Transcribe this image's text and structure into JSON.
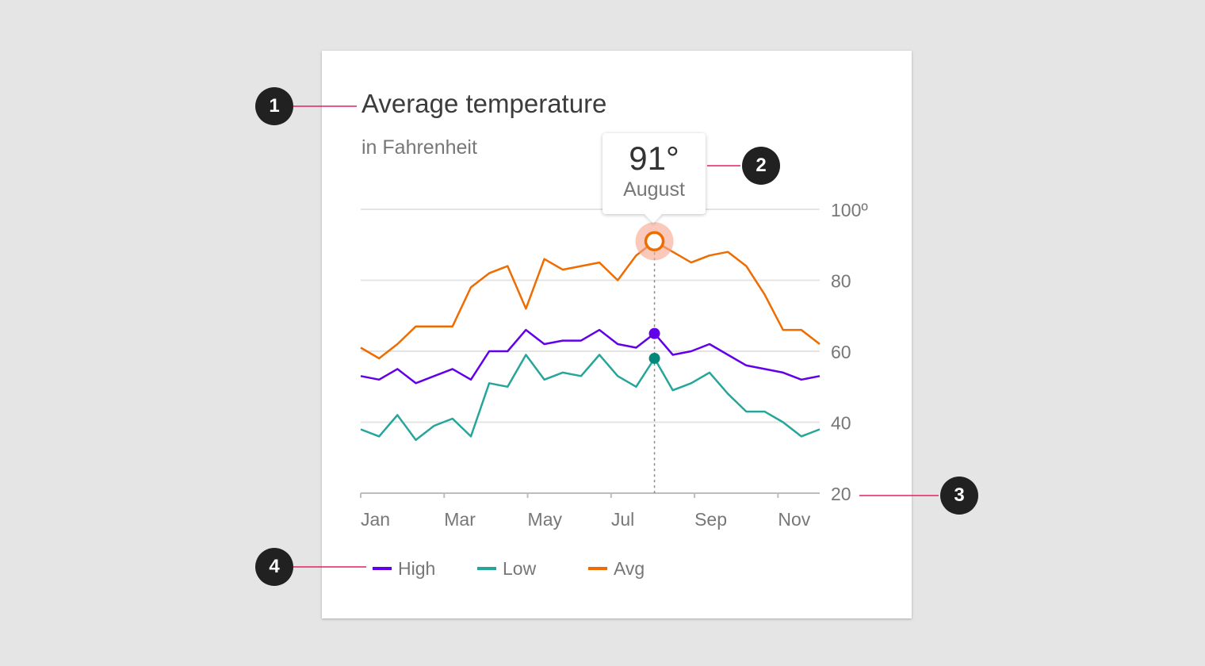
{
  "chart_data": {
    "type": "line",
    "title": "Average temperature",
    "subtitle": "in Fahrenheit",
    "x_tick_labels": [
      "Jan",
      "Mar",
      "May",
      "Jul",
      "Sep",
      "Nov"
    ],
    "y_tick_labels": [
      "100º",
      "80",
      "60",
      "40",
      "20"
    ],
    "y_ticks": [
      100,
      80,
      60,
      40,
      20
    ],
    "ylim": [
      20,
      100
    ],
    "xlim": [
      0,
      25
    ],
    "grid": true,
    "legend_position": "bottom-left",
    "x": [
      0,
      1,
      2,
      3,
      4,
      5,
      6,
      7,
      8,
      9,
      10,
      11,
      12,
      13,
      14,
      15,
      16,
      17,
      18,
      19,
      20,
      21,
      22,
      23,
      24,
      25
    ],
    "series": [
      {
        "name": "High",
        "color": "#6200ea",
        "values": [
          53,
          52,
          55,
          51,
          53,
          55,
          52,
          60,
          60,
          66,
          62,
          63,
          63,
          66,
          62,
          61,
          65,
          59,
          60,
          62,
          59,
          56,
          55,
          54,
          52,
          53
        ]
      },
      {
        "name": "Low",
        "color": "#26a69a",
        "values": [
          38,
          36,
          42,
          35,
          39,
          41,
          36,
          51,
          50,
          59,
          52,
          54,
          53,
          59,
          53,
          50,
          58,
          49,
          51,
          54,
          48,
          43,
          43,
          40,
          36,
          38
        ]
      },
      {
        "name": "Avg",
        "color": "#ef6c00",
        "values": [
          61,
          58,
          62,
          67,
          67,
          67,
          78,
          82,
          84,
          72,
          86,
          83,
          84,
          85,
          80,
          87,
          91,
          88,
          85,
          87,
          88,
          84,
          76,
          66,
          66,
          62
        ]
      }
    ],
    "highlight": {
      "x": 16,
      "value_label": "91°",
      "month_label": "August"
    }
  },
  "annotations": [
    "1",
    "2",
    "3",
    "4"
  ]
}
